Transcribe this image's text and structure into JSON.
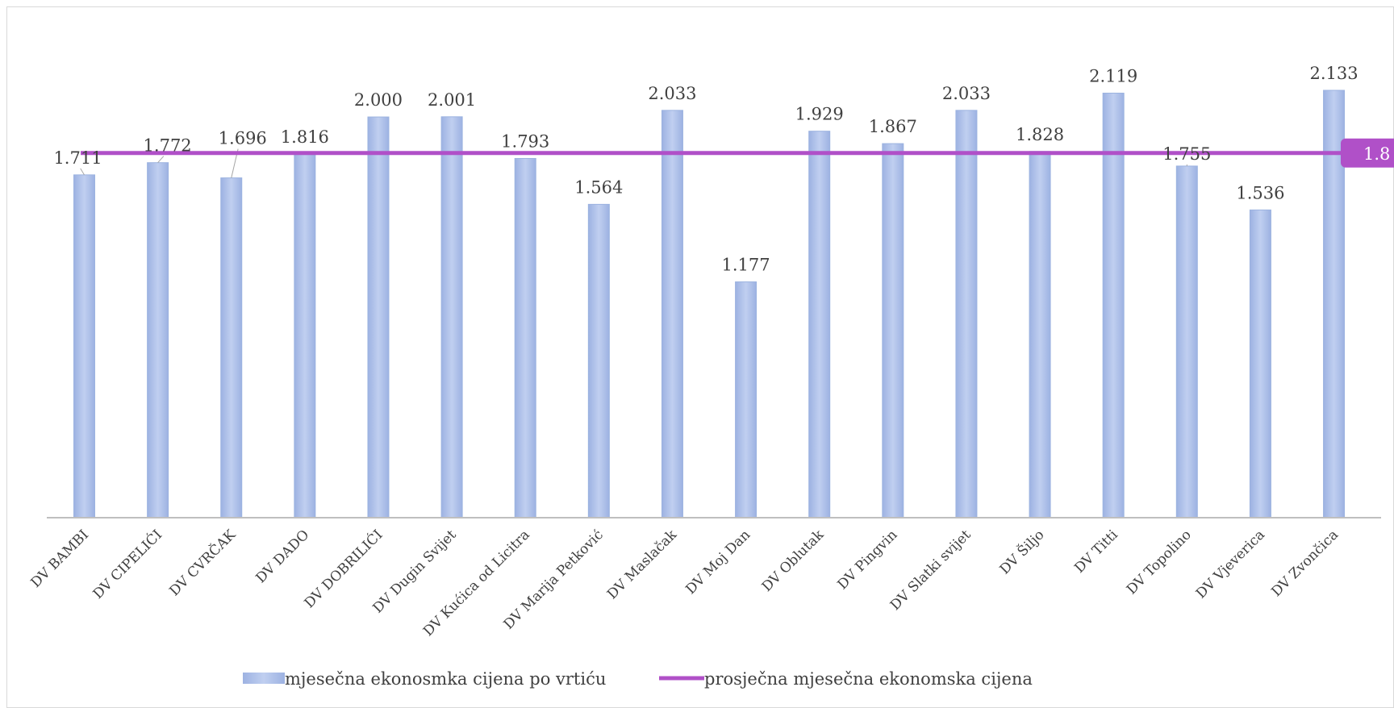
{
  "chart_data": {
    "type": "bar",
    "categories": [
      "DV BAMBI",
      "DV CIPELIĆI",
      "DV CVRČAK",
      "DV DADO",
      "DV DOBRILIĆI",
      "DV Dugin Svijet",
      "DV Kućica od Licitra",
      "DV Marija Petković",
      "DV Maslačak",
      "DV Moj Dan",
      "DV Oblutak",
      "DV Pingvin",
      "DV Slatki svijet",
      "DV Šiljo",
      "DV Titti",
      "DV Topolino",
      "DV Vjeverica",
      "DV Zvončica"
    ],
    "series": [
      {
        "name": "mjesečna ekonosmka cijena po vrtiću",
        "values": [
          1711,
          1772,
          1696,
          1816,
          2000,
          2001,
          1793,
          1564,
          2033,
          1177,
          1929,
          1867,
          2033,
          1828,
          2119,
          1755,
          1536,
          2133
        ]
      }
    ],
    "value_labels": [
      "1.711",
      "1.772",
      "1.696",
      "1.816",
      "2.000",
      "2.001",
      "1.793",
      "1.564",
      "2.033",
      "1.177",
      "1.929",
      "1.867",
      "2.033",
      "1.828",
      "2.119",
      "1.755",
      "1.536",
      "2.133"
    ],
    "average_line": {
      "name": "prosječna mjesečna ekonomska cijena",
      "value": 1820,
      "label": "1.8"
    },
    "ylim": [
      0,
      2400
    ],
    "grid": false,
    "legend_position": "bottom",
    "title": "",
    "xlabel": "",
    "ylabel": ""
  },
  "colors": {
    "bar": "#aabde6",
    "bar_edge": "#9cb3e0",
    "line": "#b050c8",
    "axis": "#bfbfbf",
    "text": "#404040"
  }
}
